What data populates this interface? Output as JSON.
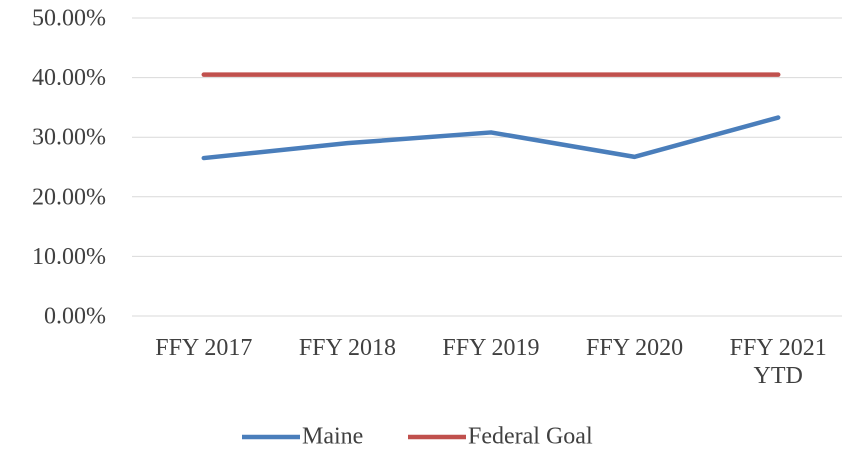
{
  "chart_data": {
    "type": "line",
    "categories": [
      "FFY 2017",
      "FFY 2018",
      "FFY 2019",
      "FFY 2020",
      "FFY 2021 YTD"
    ],
    "series": [
      {
        "name": "Maine",
        "color": "#4a7ebb",
        "values": [
          26.5,
          29.0,
          30.8,
          26.7,
          33.3
        ]
      },
      {
        "name": "Federal Goal",
        "color": "#c0504d",
        "values": [
          40.5,
          40.5,
          40.5,
          40.5,
          40.5
        ]
      }
    ],
    "ylim": [
      0,
      50
    ],
    "yticks": [
      {
        "value": 0,
        "label": "0.00%"
      },
      {
        "value": 10,
        "label": "10.00%"
      },
      {
        "value": 20,
        "label": "20.00%"
      },
      {
        "value": 30,
        "label": "30.00%"
      },
      {
        "value": 40,
        "label": "40.00%"
      },
      {
        "value": 50,
        "label": "50.00%"
      }
    ],
    "grid": true,
    "legend": "bottom"
  }
}
